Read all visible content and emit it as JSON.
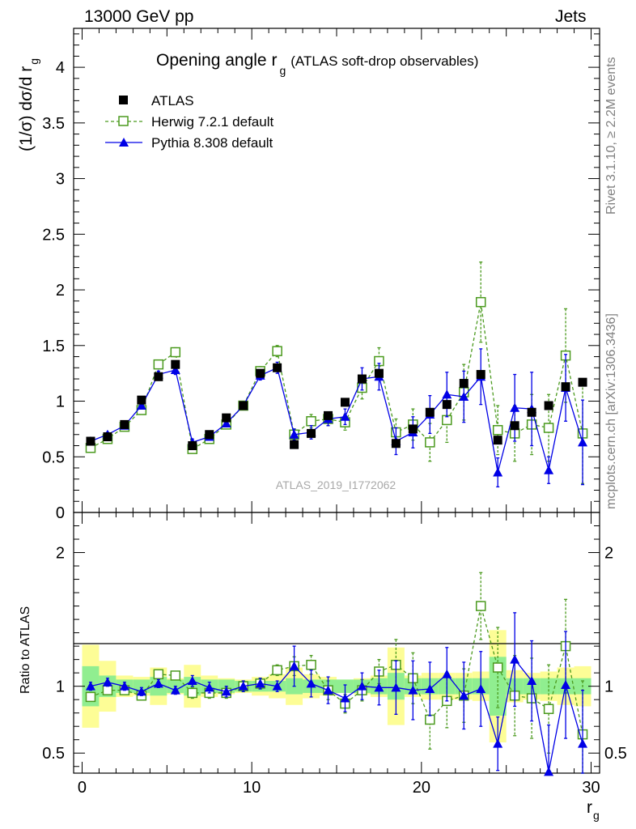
{
  "header": {
    "energy": "13000 GeV pp",
    "category": "Jets"
  },
  "side_labels": {
    "rivet": "Rivet 3.1.10, ≥ 2.2M events",
    "mcplots": "mcplots.cern.ch [arXiv:1306.3436]"
  },
  "watermark": "ATLAS_2019_I1772062",
  "chart_data": {
    "type": "scatter",
    "title": "Opening angle r",
    "title_sub": "g",
    "title_suffix": "(ATLAS soft-drop observables)",
    "xlabel": "r",
    "xlabel_sub": "g",
    "ylabel_top": "(1/σ) dσ/d r",
    "ylabel_top_sub": "g",
    "ylabel_ratio": "Ratio to ATLAS",
    "xlim": [
      -0.5,
      30.5
    ],
    "ylim_top": [
      0,
      4.35
    ],
    "ylim_ratio": [
      0.35,
      2.3
    ],
    "x_ticks": [
      "0",
      "10",
      "20",
      "30"
    ],
    "y_ticks_top": [
      "0",
      "0.5",
      "1",
      "1.5",
      "2",
      "2.5",
      "3",
      "3.5",
      "4"
    ],
    "y_ticks_ratio": [
      "0.5",
      "1",
      "2"
    ],
    "legend": [
      "ATLAS",
      "Herwig 7.2.1 default",
      "Pythia 8.308 default"
    ],
    "series": [
      {
        "name": "ATLAS",
        "color": "#000000",
        "x": [
          0.5,
          1.5,
          2.5,
          3.5,
          4.5,
          5.5,
          6.5,
          7.5,
          8.5,
          9.5,
          10.5,
          11.5,
          12.5,
          13.5,
          14.5,
          15.5,
          16.5,
          17.5,
          18.5,
          19.5,
          20.5,
          21.5,
          22.5,
          23.5,
          24.5,
          25.5,
          26.5,
          27.5,
          28.5,
          29.5
        ],
        "values": [
          0.64,
          0.68,
          0.79,
          1.01,
          1.22,
          1.33,
          0.6,
          0.7,
          0.85,
          0.96,
          1.25,
          1.3,
          0.61,
          0.71,
          0.87,
          0.99,
          1.2,
          1.25,
          0.62,
          0.75,
          0.9,
          0.97,
          1.16,
          1.24,
          0.65,
          0.78,
          0.9,
          0.96,
          1.13,
          1.17
        ],
        "ratio_band_inner": [
          0.15,
          0.08,
          0.05,
          0.05,
          0.07,
          0.05,
          0.07,
          0.05,
          0.05,
          0.04,
          0.04,
          0.04,
          0.06,
          0.05,
          0.05,
          0.05,
          0.05,
          0.06,
          0.1,
          0.06,
          0.06,
          0.06,
          0.06,
          0.06,
          0.22,
          0.06,
          0.06,
          0.06,
          0.06,
          0.06
        ],
        "ratio_band_outer": [
          0.31,
          0.19,
          0.08,
          0.07,
          0.14,
          0.06,
          0.16,
          0.08,
          0.06,
          0.05,
          0.07,
          0.09,
          0.14,
          0.09,
          0.07,
          0.05,
          0.06,
          0.08,
          0.29,
          0.08,
          0.1,
          0.1,
          0.1,
          0.11,
          0.42,
          0.12,
          0.1,
          0.11,
          0.14,
          0.15
        ]
      },
      {
        "name": "Herwig 7.2.1 default",
        "color": "#4b9a1e",
        "x": [
          0.5,
          1.5,
          2.5,
          3.5,
          4.5,
          5.5,
          6.5,
          7.5,
          8.5,
          9.5,
          10.5,
          11.5,
          12.5,
          13.5,
          14.5,
          15.5,
          16.5,
          17.5,
          18.5,
          19.5,
          20.5,
          21.5,
          22.5,
          23.5,
          24.5,
          25.5,
          26.5,
          27.5,
          28.5,
          29.5
        ],
        "values": [
          0.58,
          0.66,
          0.77,
          0.92,
          1.33,
          1.44,
          0.57,
          0.66,
          0.79,
          0.96,
          1.27,
          1.45,
          0.7,
          0.82,
          0.84,
          0.81,
          1.12,
          1.36,
          0.72,
          0.79,
          0.63,
          0.83,
          1.08,
          1.89,
          0.74,
          0.71,
          0.79,
          0.76,
          1.41,
          0.71
        ],
        "errors": [
          0.02,
          0.02,
          0.02,
          0.03,
          0.03,
          0.04,
          0.03,
          0.03,
          0.03,
          0.03,
          0.04,
          0.05,
          0.05,
          0.06,
          0.06,
          0.07,
          0.1,
          0.12,
          0.12,
          0.14,
          0.17,
          0.2,
          0.25,
          0.36,
          0.22,
          0.25,
          0.27,
          0.3,
          0.42,
          0.45
        ],
        "ratio": [
          0.92,
          0.97,
          0.97,
          0.93,
          1.09,
          1.08,
          0.95,
          0.95,
          0.95,
          1.0,
          1.02,
          1.12,
          1.15,
          1.16,
          0.97,
          0.87,
          0.97,
          1.11,
          1.16,
          1.06,
          0.75,
          0.89,
          0.93,
          1.6,
          1.14,
          0.93,
          0.91,
          0.83,
          1.3,
          0.64
        ],
        "ratio_errors": [
          0.03,
          0.03,
          0.03,
          0.03,
          0.03,
          0.03,
          0.04,
          0.04,
          0.04,
          0.04,
          0.04,
          0.04,
          0.07,
          0.07,
          0.07,
          0.07,
          0.08,
          0.09,
          0.19,
          0.19,
          0.22,
          0.2,
          0.2,
          0.25,
          0.3,
          0.3,
          0.3,
          0.33,
          0.35,
          0.4
        ]
      },
      {
        "name": "Pythia 8.308 default",
        "color": "#0000e6",
        "x": [
          0.5,
          1.5,
          2.5,
          3.5,
          4.5,
          5.5,
          6.5,
          7.5,
          8.5,
          9.5,
          10.5,
          11.5,
          12.5,
          13.5,
          14.5,
          15.5,
          16.5,
          17.5,
          18.5,
          19.5,
          20.5,
          21.5,
          22.5,
          23.5,
          24.5,
          25.5,
          26.5,
          27.5,
          28.5,
          29.5
        ],
        "values": [
          0.64,
          0.7,
          0.78,
          0.96,
          1.24,
          1.28,
          0.63,
          0.68,
          0.8,
          0.96,
          1.23,
          1.3,
          0.7,
          0.72,
          0.84,
          0.86,
          1.2,
          1.22,
          0.64,
          0.72,
          0.88,
          1.06,
          1.04,
          1.22,
          0.36,
          0.94,
          0.93,
          0.38,
          1.12,
          0.63
        ],
        "errors": [
          0.02,
          0.02,
          0.02,
          0.03,
          0.03,
          0.04,
          0.03,
          0.03,
          0.03,
          0.03,
          0.04,
          0.05,
          0.05,
          0.06,
          0.06,
          0.07,
          0.1,
          0.12,
          0.12,
          0.14,
          0.17,
          0.2,
          0.23,
          0.25,
          0.13,
          0.3,
          0.33,
          0.12,
          0.3,
          0.38
        ],
        "ratio": [
          1.0,
          1.03,
          1.0,
          0.96,
          1.02,
          0.97,
          1.04,
          0.99,
          0.96,
          1.0,
          1.02,
          1.0,
          1.15,
          1.02,
          0.97,
          0.91,
          1.0,
          0.99,
          0.99,
          0.97,
          0.98,
          1.09,
          0.93,
          0.98,
          0.57,
          1.2,
          1.04,
          0.36,
          1.01,
          0.57
        ],
        "ratio_errors": [
          0.03,
          0.03,
          0.03,
          0.03,
          0.03,
          0.03,
          0.04,
          0.04,
          0.04,
          0.04,
          0.04,
          0.04,
          0.15,
          0.1,
          0.1,
          0.1,
          0.1,
          0.13,
          0.2,
          0.22,
          0.2,
          0.2,
          0.25,
          0.28,
          0.2,
          0.35,
          0.3,
          0.35,
          0.4,
          0.4
        ]
      }
    ]
  }
}
